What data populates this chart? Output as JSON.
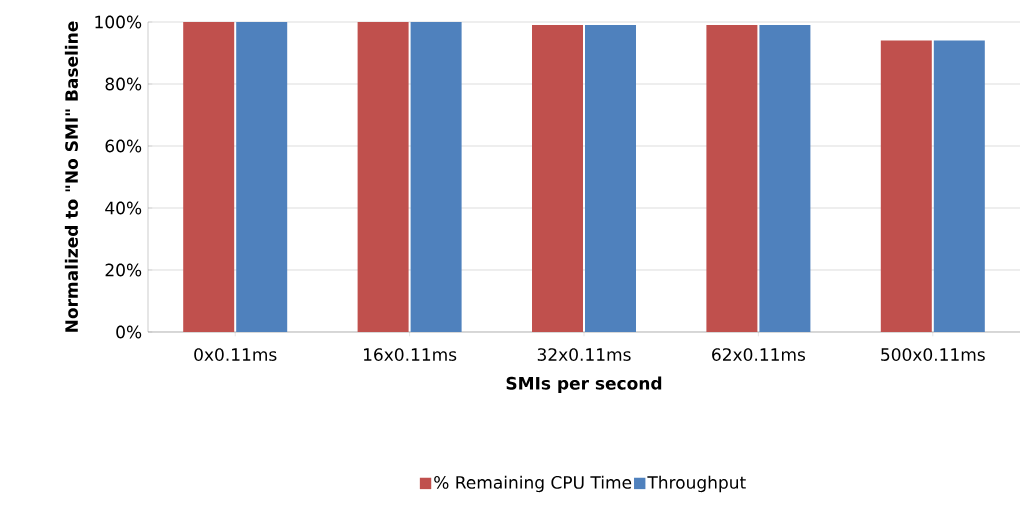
{
  "chart_data": {
    "type": "bar",
    "xlabel": "SMIs per second",
    "ylabel": "Normalized to \"No SMI\" Baseline",
    "categories": [
      "0x0.11ms",
      "16x0.11ms",
      "32x0.11ms",
      "62x0.11ms",
      "500x0.11ms"
    ],
    "series": [
      {
        "name": "% Remaining CPU Time",
        "color": "#c0504d",
        "values": [
          100,
          100,
          99,
          99,
          94
        ]
      },
      {
        "name": "Throughput",
        "color": "#4f81bd",
        "values": [
          100,
          100,
          99,
          99,
          94
        ]
      }
    ],
    "ylim": [
      0,
      100
    ],
    "yticks": [
      {
        "value": 0,
        "label": "0%"
      },
      {
        "value": 20,
        "label": "20%"
      },
      {
        "value": 40,
        "label": "40%"
      },
      {
        "value": 60,
        "label": "60%"
      },
      {
        "value": 80,
        "label": "80%"
      },
      {
        "value": 100,
        "label": "100%"
      }
    ],
    "grid": "y",
    "legend": "bottom"
  }
}
